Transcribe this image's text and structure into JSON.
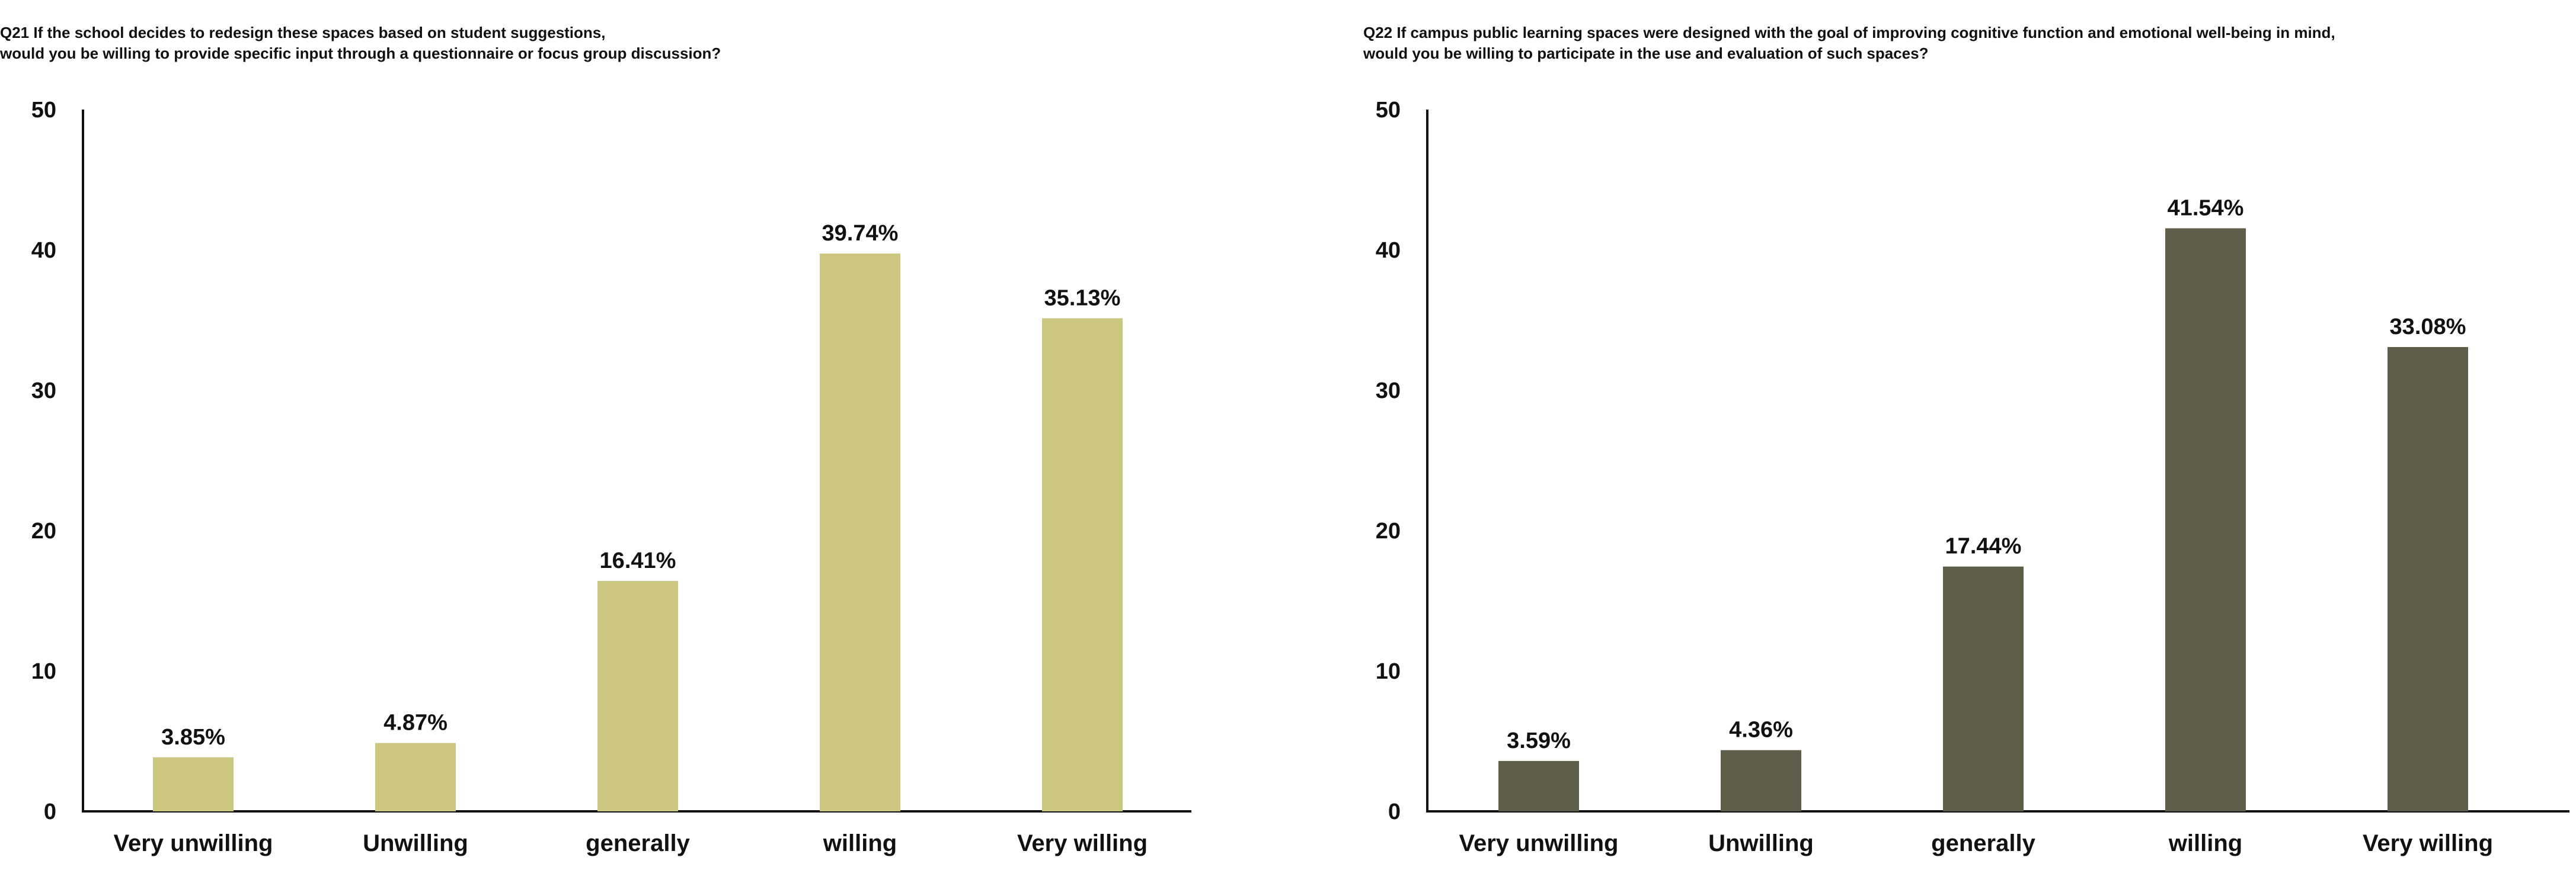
{
  "chart_data": [
    {
      "type": "bar",
      "title_lines": [
        "Q21 If the school decides to redesign these spaces based on student suggestions,",
        "would you be willing to provide specific input through a questionnaire or focus group discussion?"
      ],
      "categories": [
        "Very unwilling",
        "Unwilling",
        "generally",
        "willing",
        "Very willing"
      ],
      "values": [
        3.85,
        4.87,
        16.41,
        39.74,
        35.13
      ],
      "data_labels": [
        "3.85%",
        "4.87%",
        "16.41%",
        "39.74%",
        "35.13%"
      ],
      "yticks": [
        "0",
        "10",
        "20",
        "30",
        "40",
        "50"
      ],
      "ylim": [
        0,
        50
      ],
      "xlabel": "",
      "ylabel": "",
      "grid": false,
      "legend": "none",
      "bar_color": "#cbc77f"
    },
    {
      "type": "bar",
      "title_lines": [
        "Q22 If campus public learning spaces were designed with the goal of improving cognitive function and emotional well-being in mind,",
        "would you be willing to participate in the use and evaluation of such spaces?"
      ],
      "categories": [
        "Very unwilling",
        "Unwilling",
        "generally",
        "willing",
        "Very willing"
      ],
      "values": [
        3.59,
        4.36,
        17.44,
        41.54,
        33.08
      ],
      "data_labels": [
        "3.59%",
        "4.36%",
        "17.44%",
        "41.54%",
        "33.08%"
      ],
      "yticks": [
        "0",
        "10",
        "20",
        "30",
        "40",
        "50"
      ],
      "ylim": [
        0,
        50
      ],
      "xlabel": "",
      "ylabel": "",
      "grid": false,
      "legend": "none",
      "bar_color": "#5f5e4a"
    }
  ]
}
